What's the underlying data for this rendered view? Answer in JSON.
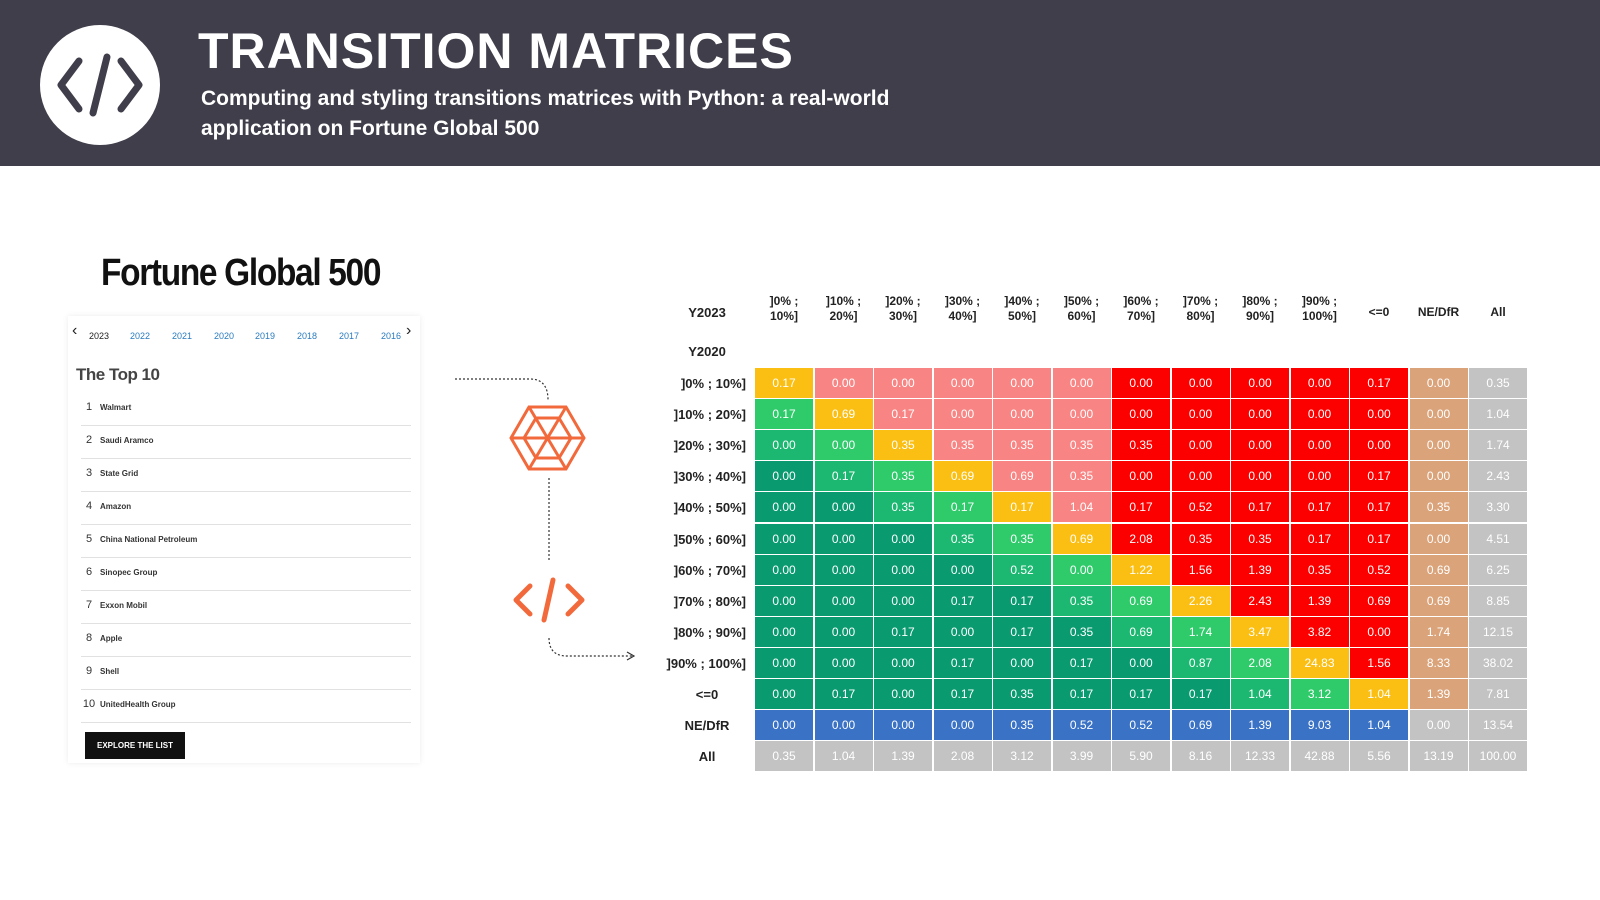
{
  "header": {
    "title": "TRANSITION MATRICES",
    "subtitle": "Computing and styling transitions matrices with Python: a real-world application on Fortune Global 500",
    "logo_icon": "code-icon"
  },
  "fortune": {
    "title": "Fortune Global 500",
    "years": [
      "2023",
      "2022",
      "2021",
      "2020",
      "2019",
      "2018",
      "2017",
      "2016"
    ],
    "active_year": "2023",
    "top10_title": "The Top 10",
    "companies": [
      {
        "rank": "1",
        "name": "Walmart"
      },
      {
        "rank": "2",
        "name": "Saudi Aramco"
      },
      {
        "rank": "3",
        "name": "State Grid"
      },
      {
        "rank": "4",
        "name": "Amazon"
      },
      {
        "rank": "5",
        "name": "China National Petroleum"
      },
      {
        "rank": "6",
        "name": "Sinopec Group"
      },
      {
        "rank": "7",
        "name": "Exxon Mobil"
      },
      {
        "rank": "8",
        "name": "Apple"
      },
      {
        "rank": "9",
        "name": "Shell"
      },
      {
        "rank": "10",
        "name": "UnitedHealth Group"
      }
    ],
    "explore_label": "EXPLORE THE LIST"
  },
  "icons": {
    "web": "spider-web-icon",
    "code": "code-icon"
  },
  "matrix": {
    "col_axis_label": "Y2023",
    "row_axis_label": "Y2020",
    "col_headers": [
      [
        "]0% ;",
        "10%]"
      ],
      [
        "]10% ;",
        "20%]"
      ],
      [
        "]20% ;",
        "30%]"
      ],
      [
        "]30% ;",
        "40%]"
      ],
      [
        "]40% ;",
        "50%]"
      ],
      [
        "]50% ;",
        "60%]"
      ],
      [
        "]60% ;",
        "70%]"
      ],
      [
        "]70% ;",
        "80%]"
      ],
      [
        "]80% ;",
        "90%]"
      ],
      [
        "]90% ;",
        "100%]"
      ],
      [
        "<=0"
      ],
      [
        "NE/DfR"
      ],
      [
        "All"
      ]
    ],
    "row_headers": [
      "]0% ; 10%]",
      "]10% ; 20%]",
      "]20% ; 30%]",
      "]30% ; 40%]",
      "]40% ; 50%]",
      "]50% ; 60%]",
      "]60% ; 70%]",
      "]70% ; 80%]",
      "]80% ; 90%]",
      "]90% ; 100%]",
      "<=0",
      "NE/DfR",
      "All"
    ],
    "values": [
      [
        "0.17",
        "0.00",
        "0.00",
        "0.00",
        "0.00",
        "0.00",
        "0.00",
        "0.00",
        "0.00",
        "0.00",
        "0.17",
        "0.00",
        "0.35"
      ],
      [
        "0.17",
        "0.69",
        "0.17",
        "0.00",
        "0.00",
        "0.00",
        "0.00",
        "0.00",
        "0.00",
        "0.00",
        "0.00",
        "0.00",
        "1.04"
      ],
      [
        "0.00",
        "0.00",
        "0.35",
        "0.35",
        "0.35",
        "0.35",
        "0.35",
        "0.00",
        "0.00",
        "0.00",
        "0.00",
        "0.00",
        "1.74"
      ],
      [
        "0.00",
        "0.17",
        "0.35",
        "0.69",
        "0.69",
        "0.35",
        "0.00",
        "0.00",
        "0.00",
        "0.00",
        "0.17",
        "0.00",
        "2.43"
      ],
      [
        "0.00",
        "0.00",
        "0.35",
        "0.17",
        "0.17",
        "1.04",
        "0.17",
        "0.52",
        "0.17",
        "0.17",
        "0.17",
        "0.35",
        "3.30"
      ],
      [
        "0.00",
        "0.00",
        "0.00",
        "0.35",
        "0.35",
        "0.69",
        "2.08",
        "0.35",
        "0.35",
        "0.17",
        "0.17",
        "0.00",
        "4.51"
      ],
      [
        "0.00",
        "0.00",
        "0.00",
        "0.00",
        "0.52",
        "0.00",
        "1.22",
        "1.56",
        "1.39",
        "0.35",
        "0.52",
        "0.69",
        "6.25"
      ],
      [
        "0.00",
        "0.00",
        "0.00",
        "0.17",
        "0.17",
        "0.35",
        "0.69",
        "2.26",
        "2.43",
        "1.39",
        "0.69",
        "0.69",
        "8.85"
      ],
      [
        "0.00",
        "0.00",
        "0.17",
        "0.00",
        "0.17",
        "0.35",
        "0.69",
        "1.74",
        "3.47",
        "3.82",
        "0.00",
        "1.74",
        "12.15"
      ],
      [
        "0.00",
        "0.00",
        "0.00",
        "0.17",
        "0.00",
        "0.17",
        "0.00",
        "0.87",
        "2.08",
        "24.83",
        "1.56",
        "8.33",
        "38.02"
      ],
      [
        "0.00",
        "0.17",
        "0.00",
        "0.17",
        "0.35",
        "0.17",
        "0.17",
        "0.17",
        "1.04",
        "3.12",
        "1.04",
        "1.39",
        "7.81"
      ],
      [
        "0.00",
        "0.00",
        "0.00",
        "0.00",
        "0.35",
        "0.52",
        "0.52",
        "0.69",
        "1.39",
        "9.03",
        "1.04",
        "0.00",
        "13.54"
      ],
      [
        "0.35",
        "1.04",
        "1.39",
        "2.08",
        "3.12",
        "3.99",
        "5.90",
        "8.16",
        "12.33",
        "42.88",
        "5.56",
        "13.19",
        "100.00"
      ]
    ],
    "colors": {
      "diagonal": "#fbbf14",
      "light_red": "#f88584",
      "red": "#fc0000",
      "green_far": "#0a9a70",
      "green_mid": "#1cb871",
      "green_near": "#2fcb6b",
      "tan": "#daa37a",
      "gray": "#c3c3c3",
      "blue": "#3a72c6"
    }
  }
}
